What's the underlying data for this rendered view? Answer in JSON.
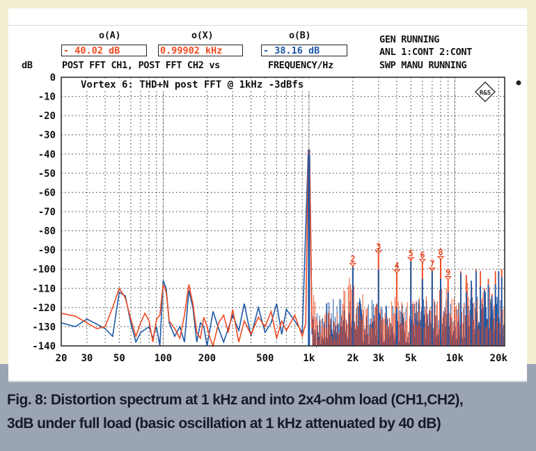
{
  "header": {
    "cursor_a_label": "o(A)",
    "cursor_x_label": "o(X)",
    "cursor_b_label": "o(B)",
    "cursor_a_value": "- 40.02 dB",
    "cursor_x_value": "0.99902 kHz",
    "cursor_b_value": "- 38.16 dB",
    "y_unit": "dB",
    "trace_desc": "POST FFT CH1, POST FFT CH2 vs",
    "x_desc": "FREQUENCY/Hz",
    "status": [
      "GEN RUNNING",
      "ANL 1:CONT 2:CONT",
      "SWP MANU RUNNING"
    ]
  },
  "caption": {
    "line1": "Fig. 8: Distortion spectrum at 1 kHz and into 2x4-ohm load (CH1,CH2),",
    "line2": "3dB under full load (basic oscillation at 1 kHz attenuated by 40 dB)"
  },
  "logo_text": "R&S",
  "chart_data": {
    "type": "line",
    "title": "Vortex 6: THD+N post FFT @ 1kHz -3dBfs",
    "xlabel": "FREQUENCY/Hz",
    "ylabel": "dB",
    "xscale": "log",
    "xlim": [
      20,
      22000
    ],
    "ylim": [
      -140,
      0
    ],
    "grid": true,
    "yticks": [
      0,
      -10,
      -20,
      -30,
      -40,
      -50,
      -60,
      -70,
      -80,
      -90,
      -100,
      -110,
      -120,
      -130,
      -140
    ],
    "xticks": [
      {
        "v": 20,
        "label": "20"
      },
      {
        "v": 30,
        "label": "30"
      },
      {
        "v": 50,
        "label": "50"
      },
      {
        "v": 100,
        "label": "100"
      },
      {
        "v": 200,
        "label": "200"
      },
      {
        "v": 500,
        "label": "500"
      },
      {
        "v": 1000,
        "label": "1k"
      },
      {
        "v": 2000,
        "label": "2k"
      },
      {
        "v": 3000,
        "label": "3k"
      },
      {
        "v": 5000,
        "label": "5k"
      },
      {
        "v": 10000,
        "label": "10k"
      },
      {
        "v": 20000,
        "label": "20k"
      }
    ],
    "xgrid": [
      20,
      30,
      40,
      50,
      60,
      70,
      80,
      90,
      100,
      200,
      300,
      400,
      500,
      600,
      700,
      800,
      900,
      1000,
      2000,
      3000,
      4000,
      5000,
      6000,
      7000,
      8000,
      9000,
      10000,
      20000
    ],
    "series": [
      {
        "name": "POST FFT CH1",
        "color": "#f04a22",
        "points": [
          [
            20,
            -123
          ],
          [
            25,
            -124.5
          ],
          [
            30,
            -128
          ],
          [
            35,
            -131
          ],
          [
            40,
            -130
          ],
          [
            45,
            -120
          ],
          [
            50,
            -110
          ],
          [
            55,
            -115
          ],
          [
            60,
            -126
          ],
          [
            65,
            -135
          ],
          [
            70,
            -128
          ],
          [
            75,
            -123
          ],
          [
            80,
            -127
          ],
          [
            85,
            -138
          ],
          [
            90,
            -126
          ],
          [
            95,
            -124
          ],
          [
            100,
            -108
          ],
          [
            105,
            -112
          ],
          [
            110,
            -127
          ],
          [
            120,
            -131
          ],
          [
            130,
            -136
          ],
          [
            140,
            -124
          ],
          [
            150,
            -108
          ],
          [
            160,
            -118
          ],
          [
            170,
            -133
          ],
          [
            180,
            -136
          ],
          [
            190,
            -125
          ],
          [
            200,
            -130
          ],
          [
            210,
            -136
          ],
          [
            220,
            -140
          ],
          [
            240,
            -128
          ],
          [
            260,
            -124
          ],
          [
            280,
            -133
          ],
          [
            300,
            -121
          ],
          [
            330,
            -138
          ],
          [
            360,
            -127
          ],
          [
            400,
            -134
          ],
          [
            450,
            -125
          ],
          [
            500,
            -130
          ],
          [
            550,
            -122
          ],
          [
            600,
            -136
          ],
          [
            650,
            -127
          ],
          [
            700,
            -132
          ],
          [
            800,
            -124
          ],
          [
            900,
            -135
          ],
          [
            950,
            -128
          ],
          [
            990,
            -40
          ],
          [
            1000,
            -40
          ],
          [
            1010,
            -40
          ],
          [
            1050,
            -131
          ]
        ],
        "noise_floor": [
          [
            1100,
            -128
          ],
          [
            1300,
            -124
          ],
          [
            1500,
            -127
          ],
          [
            1700,
            -122
          ],
          [
            1900,
            -115
          ],
          [
            2200,
            -121
          ],
          [
            2500,
            -125
          ],
          [
            2800,
            -120
          ],
          [
            3200,
            -117
          ],
          [
            3600,
            -124
          ],
          [
            4200,
            -122
          ],
          [
            4600,
            -126
          ],
          [
            5500,
            -121
          ],
          [
            6500,
            -119
          ],
          [
            7500,
            -123
          ],
          [
            8500,
            -118
          ],
          [
            9500,
            -122
          ],
          [
            11000,
            -120
          ],
          [
            12500,
            -117
          ],
          [
            14000,
            -124
          ],
          [
            16000,
            -119
          ],
          [
            18000,
            -121
          ],
          [
            20000,
            -118
          ],
          [
            22000,
            -124
          ]
        ]
      },
      {
        "name": "POST FFT CH2",
        "color": "#1d58a6",
        "points": [
          [
            20,
            -128
          ],
          [
            25,
            -130
          ],
          [
            30,
            -126
          ],
          [
            40,
            -131
          ],
          [
            45,
            -135
          ],
          [
            50,
            -112
          ],
          [
            55,
            -114
          ],
          [
            60,
            -128
          ],
          [
            65,
            -138
          ],
          [
            70,
            -133
          ],
          [
            80,
            -130
          ],
          [
            85,
            -136
          ],
          [
            90,
            -130
          ],
          [
            95,
            -140
          ],
          [
            100,
            -106
          ],
          [
            105,
            -110
          ],
          [
            110,
            -128
          ],
          [
            120,
            -135
          ],
          [
            130,
            -130
          ],
          [
            140,
            -138
          ],
          [
            150,
            -111
          ],
          [
            160,
            -120
          ],
          [
            170,
            -138
          ],
          [
            180,
            -128
          ],
          [
            190,
            -130
          ],
          [
            200,
            -140
          ],
          [
            220,
            -122
          ],
          [
            240,
            -131
          ],
          [
            260,
            -138
          ],
          [
            300,
            -124
          ],
          [
            330,
            -132
          ],
          [
            360,
            -118
          ],
          [
            400,
            -135
          ],
          [
            450,
            -120
          ],
          [
            500,
            -133
          ],
          [
            550,
            -128
          ],
          [
            600,
            -118
          ],
          [
            650,
            -134
          ],
          [
            700,
            -121
          ],
          [
            800,
            -127
          ],
          [
            900,
            -133
          ],
          [
            990,
            -38
          ],
          [
            1000,
            -38
          ],
          [
            1010,
            -38
          ],
          [
            1050,
            -134
          ]
        ],
        "noise_floor": [
          [
            1100,
            -132
          ],
          [
            1300,
            -128
          ],
          [
            1500,
            -126
          ],
          [
            1700,
            -124
          ],
          [
            1900,
            -127
          ],
          [
            2200,
            -125
          ],
          [
            2500,
            -129
          ],
          [
            2800,
            -126
          ],
          [
            3200,
            -128
          ],
          [
            3600,
            -125
          ],
          [
            4200,
            -127
          ],
          [
            4600,
            -129
          ],
          [
            5500,
            -126
          ],
          [
            6500,
            -127
          ],
          [
            7500,
            -128
          ],
          [
            8500,
            -125
          ],
          [
            9500,
            -127
          ],
          [
            11000,
            -126
          ],
          [
            12500,
            -124
          ],
          [
            14000,
            -125
          ],
          [
            16000,
            -122
          ],
          [
            18000,
            -123
          ],
          [
            20000,
            -124
          ],
          [
            22000,
            -126
          ]
        ]
      }
    ],
    "harmonics": [
      {
        "n": "2",
        "f": 2000,
        "ch1": -98,
        "ch2": -99
      },
      {
        "n": "3",
        "f": 3000,
        "ch1": -91.5,
        "ch2": -100
      },
      {
        "n": "4",
        "f": 4000,
        "ch1": -101.5,
        "ch2": -120
      },
      {
        "n": "5",
        "f": 5000,
        "ch1": -95,
        "ch2": -96
      },
      {
        "n": "6",
        "f": 6000,
        "ch1": -96,
        "ch2": -105
      },
      {
        "n": "7",
        "f": 7000,
        "ch1": -100.5,
        "ch2": -101
      },
      {
        "n": "8",
        "f": 8000,
        "ch1": -94.5,
        "ch2": -105
      },
      {
        "n": "9",
        "f": 9000,
        "ch1": -105,
        "ch2": -112
      }
    ],
    "upper_harmonics": [
      [
        11000,
        -101,
        -102
      ],
      [
        12000,
        -103,
        -112
      ],
      [
        13000,
        -108,
        -106
      ],
      [
        14000,
        -100,
        -101
      ],
      [
        15000,
        -101,
        -109
      ],
      [
        16000,
        -110,
        -111
      ],
      [
        17000,
        -105,
        -108
      ],
      [
        18000,
        -113,
        -114
      ],
      [
        19000,
        -101,
        -108
      ],
      [
        20000,
        -101,
        -101
      ],
      [
        21000,
        -100,
        -104
      ]
    ]
  }
}
